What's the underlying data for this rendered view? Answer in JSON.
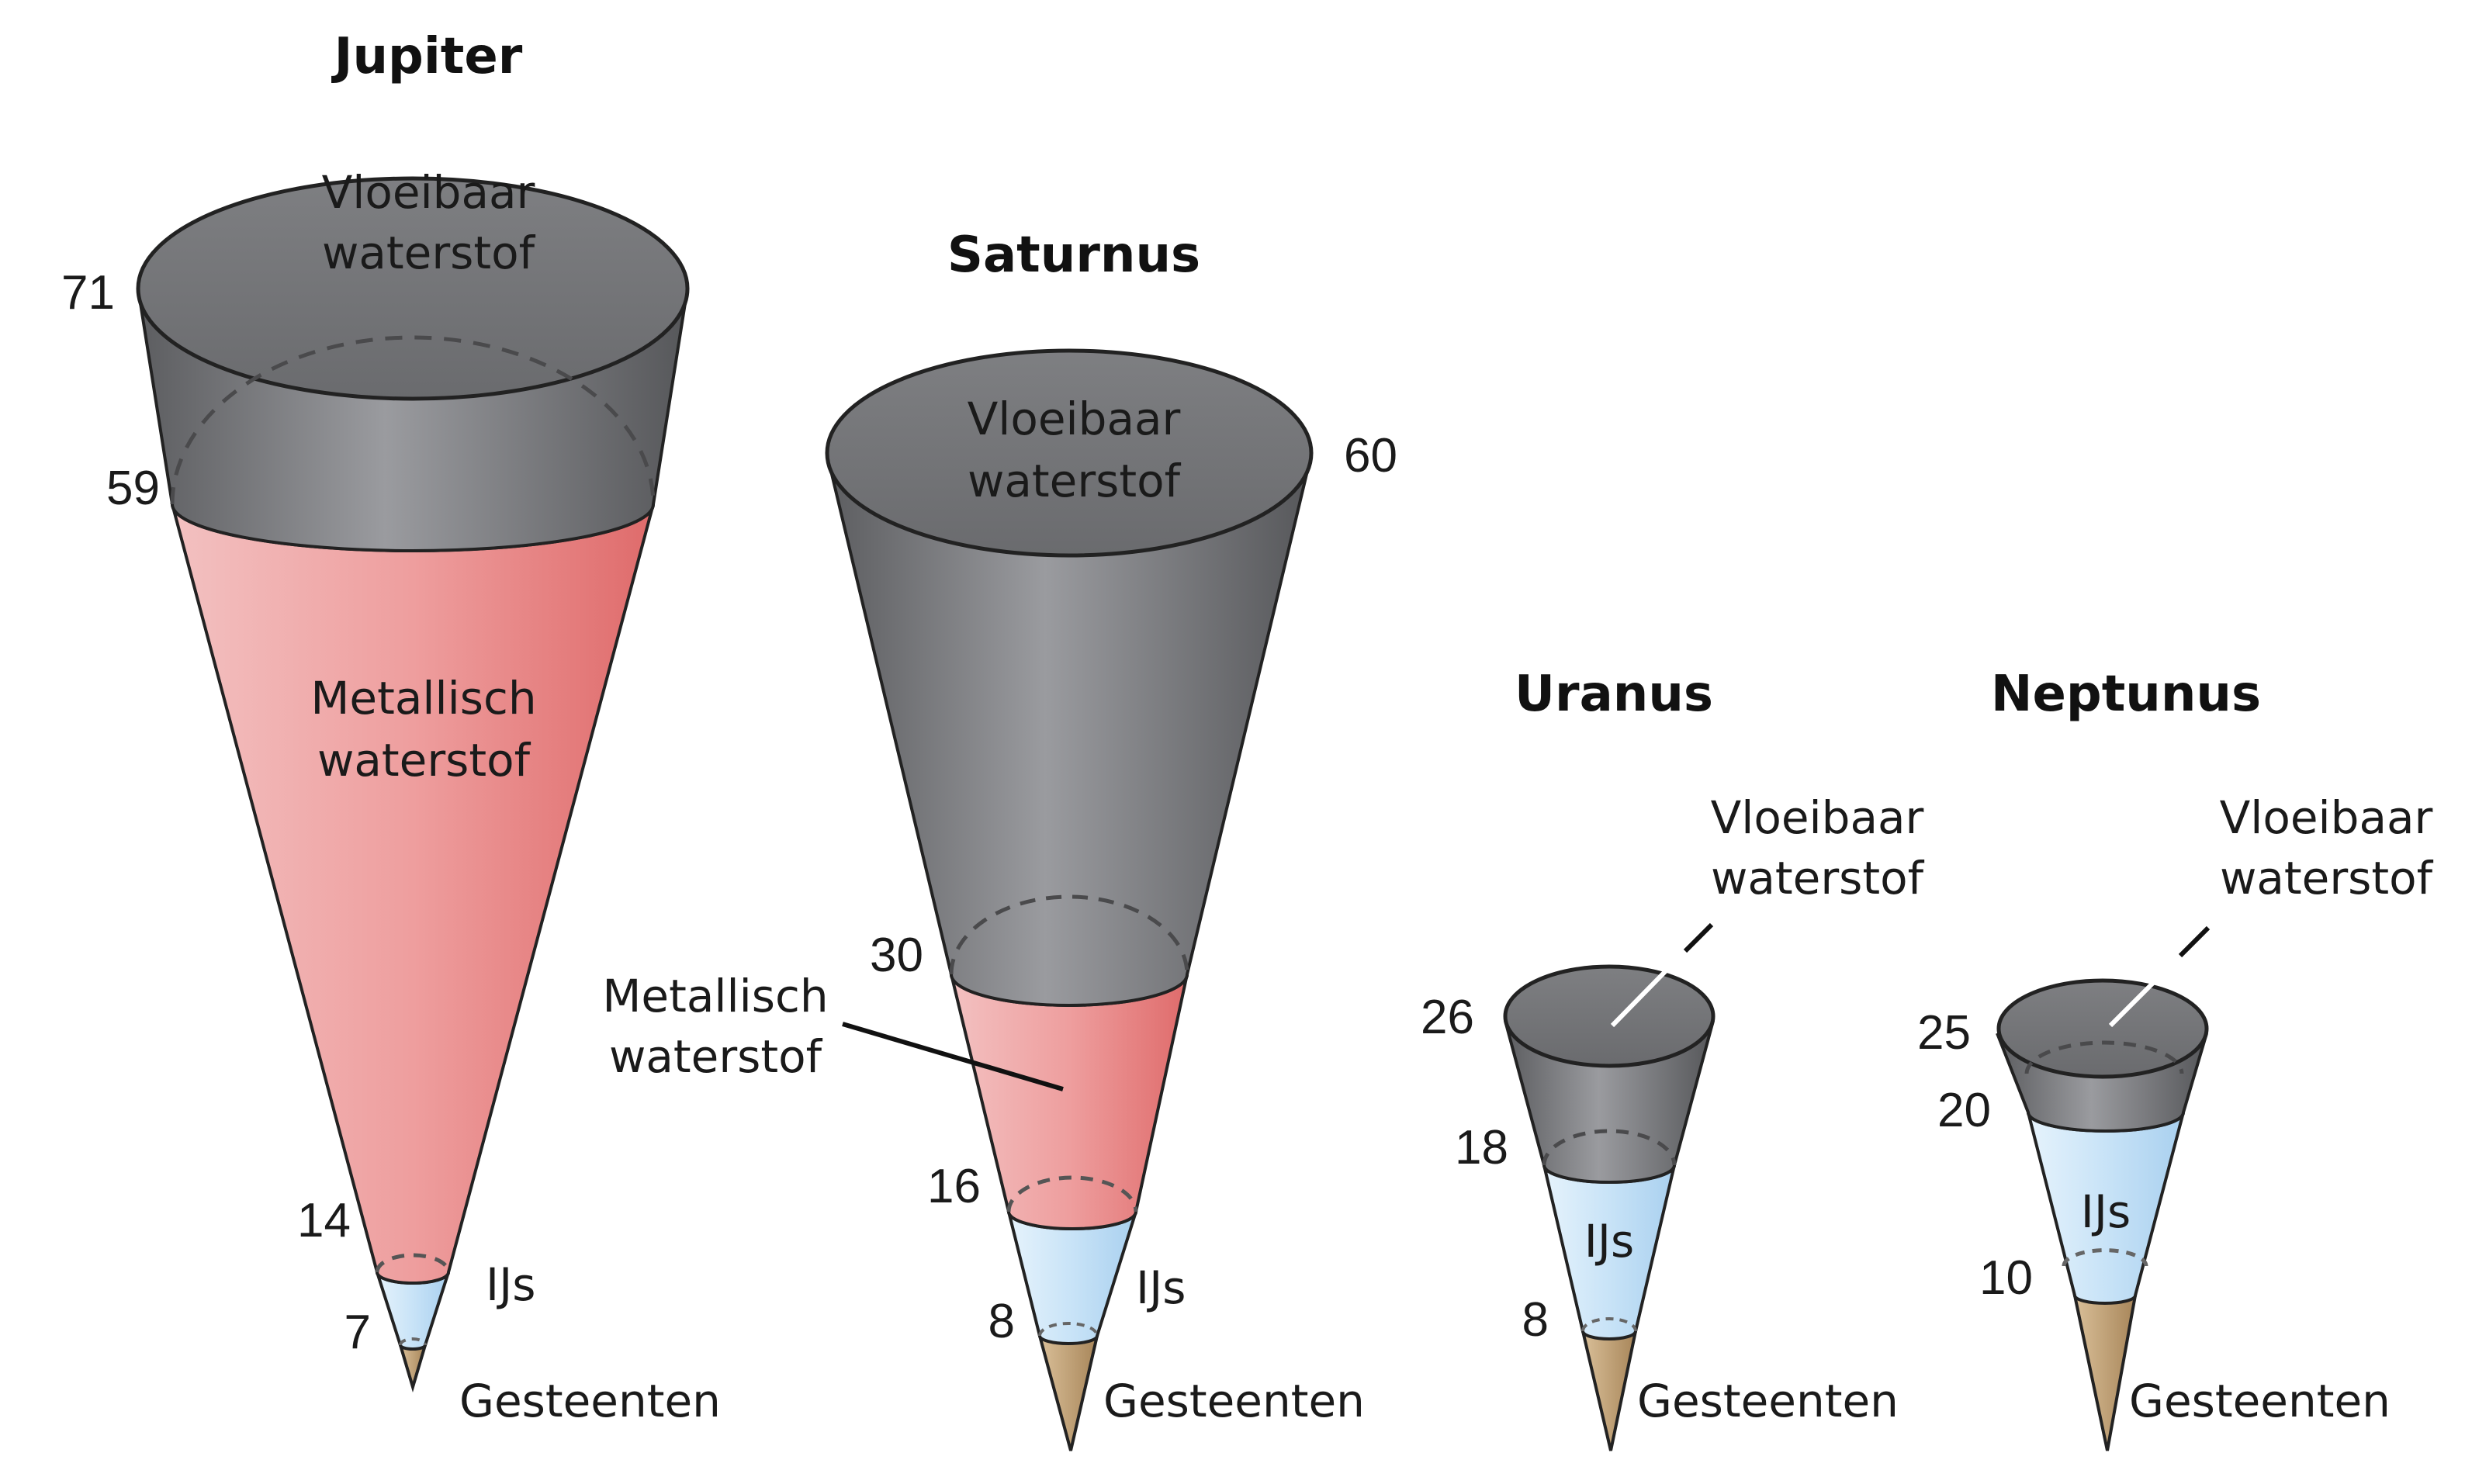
{
  "planets": [
    {
      "name": "Jupiter",
      "layers": {
        "top": "Vloeibaar waterstof",
        "metal": "Metallisch waterstof",
        "ice": "IJs",
        "rock": "Gesteenten"
      },
      "top_lines": [
        "Vloeibaar",
        "waterstof"
      ],
      "metal_lines": [
        "Metallisch",
        "waterstof"
      ],
      "ice_label": "IJs",
      "rock_label": "Gesteenten",
      "boundaries": [
        "71",
        "59",
        "14",
        "7"
      ]
    },
    {
      "name": "Saturnus",
      "top_lines": [
        "Vloeibaar",
        "waterstof"
      ],
      "metal_lines": [
        "Metallisch",
        "waterstof"
      ],
      "ice_label": "IJs",
      "rock_label": "Gesteenten",
      "boundaries": [
        "60",
        "30",
        "16",
        "8"
      ]
    },
    {
      "name": "Uranus",
      "top_lines": [
        "Vloeibaar",
        "waterstof"
      ],
      "ice_label": "IJs",
      "rock_label": "Gesteenten",
      "boundaries": [
        "26",
        "18",
        "8"
      ]
    },
    {
      "name": "Neptunus",
      "top_lines": [
        "Vloeibaar",
        "waterstof"
      ],
      "ice_label": "IJs",
      "rock_label": "Gesteenten",
      "boundaries": [
        "25",
        "20",
        "10"
      ]
    }
  ],
  "colors": {
    "liquid_hydrogen": "#7a7b7e",
    "metallic_hydrogen": "#e98a8a",
    "ice": "#cfe6f7",
    "rock": "#c4a47a"
  }
}
